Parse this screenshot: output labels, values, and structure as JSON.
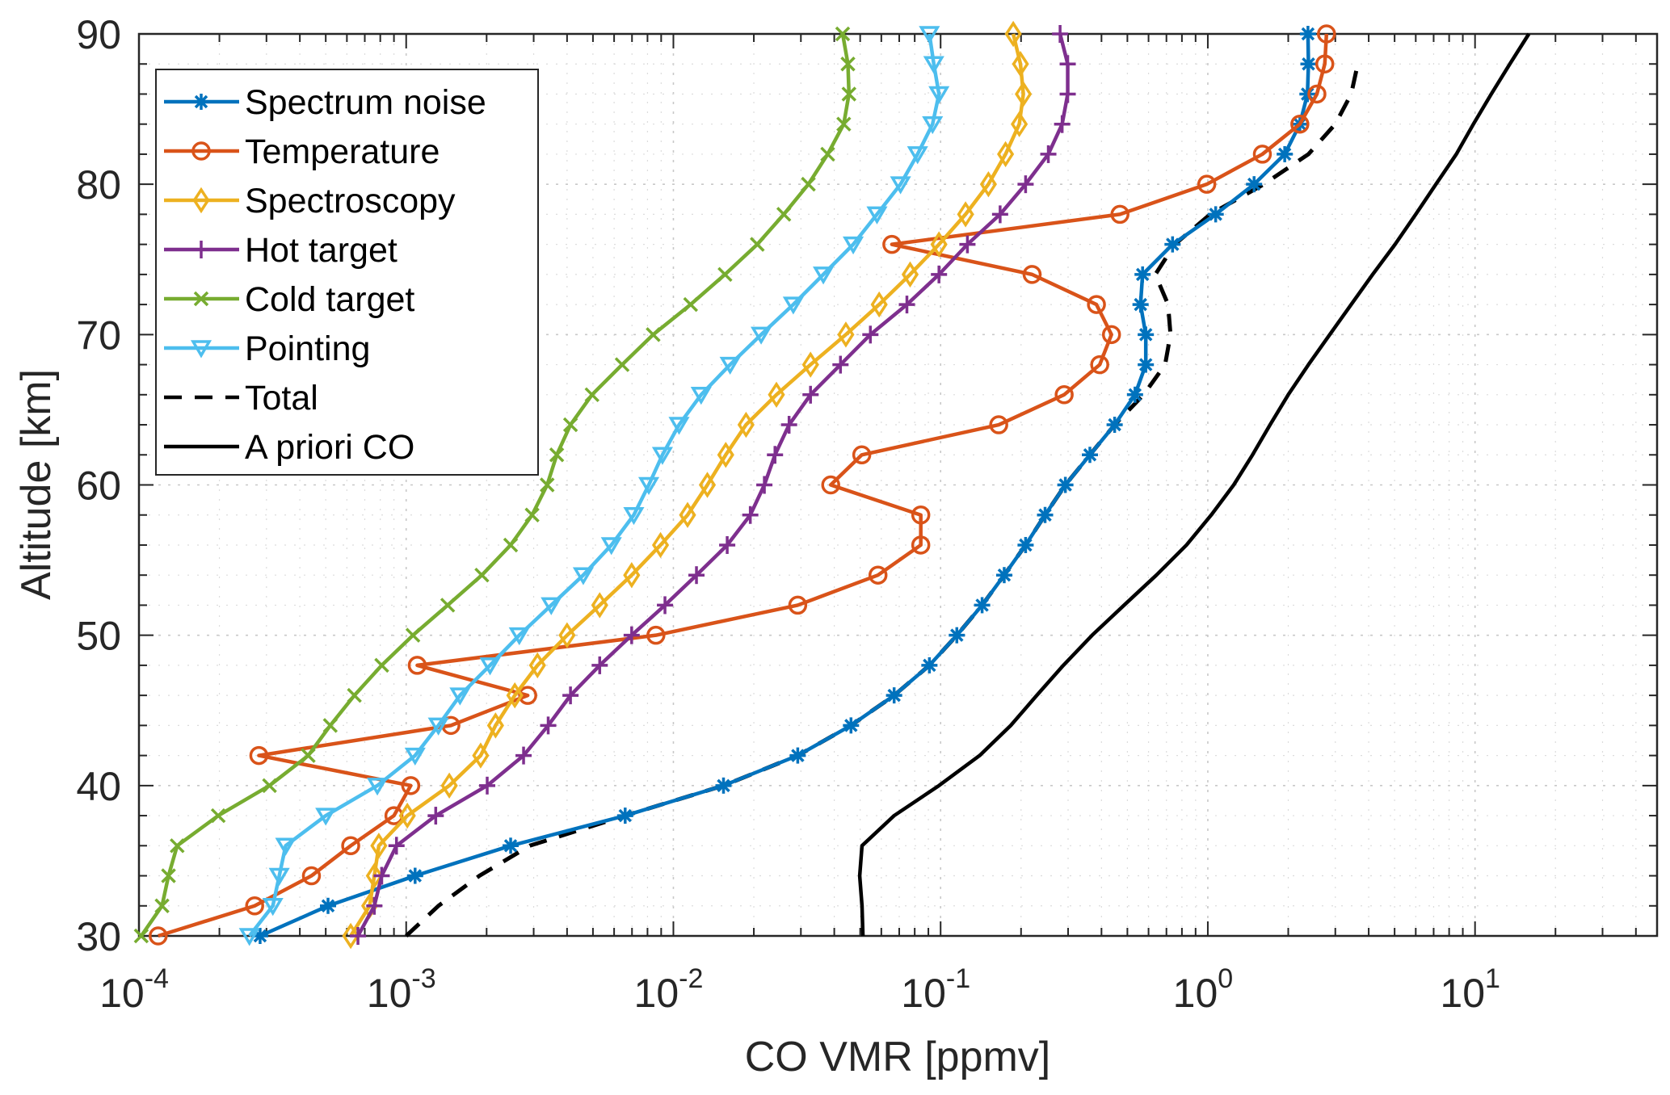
{
  "chart_data": {
    "type": "line",
    "title": "",
    "xlabel": "CO VMR [ppmv]",
    "ylabel": "Altitude [km]",
    "xscale": "log",
    "xlim": [
      0.0001,
      48
    ],
    "ylim": [
      30,
      90
    ],
    "grid": true,
    "minor_grid": true,
    "legend_position": "top-left",
    "x_tick_labels": [
      {
        "base": "10",
        "exp": "-4",
        "value": 0.0001
      },
      {
        "base": "10",
        "exp": "-3",
        "value": 0.001
      },
      {
        "base": "10",
        "exp": "-2",
        "value": 0.01
      },
      {
        "base": "10",
        "exp": "-1",
        "value": 0.1
      },
      {
        "base": "10",
        "exp": "0",
        "value": 1
      },
      {
        "base": "10",
        "exp": "1",
        "value": 10
      }
    ],
    "y_ticks": [
      30,
      40,
      50,
      60,
      70,
      80,
      90
    ],
    "y_tick_labels": [
      "30",
      "40",
      "50",
      "60",
      "70",
      "80",
      "90"
    ],
    "altitude": [
      30,
      32,
      34,
      36,
      38,
      40,
      42,
      44,
      46,
      48,
      50,
      52,
      54,
      56,
      58,
      60,
      62,
      64,
      66,
      68,
      70,
      72,
      74,
      76,
      78,
      80,
      82,
      84,
      86,
      88,
      90
    ],
    "series": [
      {
        "name": "Spectrum noise",
        "color": "#0072BD",
        "marker": "asterisk",
        "style": "solid",
        "values": [
          0.000284,
          0.00051,
          0.00108,
          0.00246,
          0.0066,
          0.0154,
          0.0292,
          0.0462,
          0.067,
          0.0908,
          0.115,
          0.143,
          0.173,
          0.208,
          0.246,
          0.293,
          0.362,
          0.448,
          0.534,
          0.586,
          0.586,
          0.56,
          0.57,
          0.738,
          1.07,
          1.49,
          1.94,
          2.21,
          2.36,
          2.38,
          2.37
        ]
      },
      {
        "name": "Temperature",
        "color": "#D95319",
        "marker": "circle",
        "style": "solid",
        "values": [
          0.000118,
          0.000271,
          0.000442,
          0.00062,
          0.0009,
          0.00104,
          0.000281,
          0.00147,
          0.00285,
          0.0011,
          0.0086,
          0.0292,
          0.0583,
          0.0843,
          0.0843,
          0.0388,
          0.0507,
          0.165,
          0.29,
          0.394,
          0.436,
          0.383,
          0.22,
          0.0657,
          0.469,
          0.991,
          1.6,
          2.21,
          2.56,
          2.74,
          2.78
        ]
      },
      {
        "name": "Spectroscopy",
        "color": "#EDB120",
        "marker": "diamond",
        "style": "solid",
        "values": [
          0.00062,
          0.00073,
          0.00076,
          0.00079,
          0.00101,
          0.00145,
          0.0019,
          0.00216,
          0.00255,
          0.0031,
          0.004,
          0.0053,
          0.00698,
          0.00895,
          0.0113,
          0.0134,
          0.0157,
          0.0187,
          0.0243,
          0.0326,
          0.0442,
          0.0589,
          0.0769,
          0.0986,
          0.124,
          0.151,
          0.175,
          0.197,
          0.204,
          0.199,
          0.187
        ]
      },
      {
        "name": "Hot target",
        "color": "#7E2F8E",
        "marker": "plus",
        "style": "solid",
        "values": [
          0.00066,
          0.00076,
          0.00081,
          0.00092,
          0.00129,
          0.00201,
          0.00275,
          0.0034,
          0.00412,
          0.0053,
          0.00698,
          0.0093,
          0.0122,
          0.0159,
          0.0194,
          0.0219,
          0.024,
          0.0271,
          0.0326,
          0.0422,
          0.0546,
          0.0748,
          0.0986,
          0.126,
          0.167,
          0.208,
          0.253,
          0.285,
          0.299,
          0.299,
          0.28
        ]
      },
      {
        "name": "Cold target",
        "color": "#77AC30",
        "marker": "x",
        "style": "solid",
        "values": [
          0.000102,
          0.000122,
          0.000129,
          0.000139,
          0.000198,
          0.000308,
          0.00043,
          0.00052,
          0.00064,
          0.00081,
          0.00106,
          0.00143,
          0.00192,
          0.00246,
          0.00296,
          0.00337,
          0.00366,
          0.00412,
          0.00496,
          0.00643,
          0.0084,
          0.0116,
          0.0156,
          0.0206,
          0.0259,
          0.032,
          0.0378,
          0.0434,
          0.0454,
          0.045,
          0.043
        ]
      },
      {
        "name": "Pointing",
        "color": "#4DBEEE",
        "marker": "triangle-down",
        "style": "solid",
        "values": [
          0.000259,
          0.000317,
          0.000335,
          0.000354,
          0.0005,
          0.00078,
          0.00108,
          0.00132,
          0.00159,
          0.00206,
          0.00265,
          0.00349,
          0.0046,
          0.00586,
          0.00711,
          0.00809,
          0.0091,
          0.0105,
          0.0127,
          0.0163,
          0.0213,
          0.0281,
          0.0364,
          0.0471,
          0.0578,
          0.0708,
          0.082,
          0.0933,
          0.0986,
          0.0943,
          0.0908
        ]
      },
      {
        "name": "Total",
        "color": "#000000",
        "marker": "none",
        "style": "dashed",
        "values": [
          0.001,
          0.00132,
          0.00188,
          0.0029,
          0.0066,
          0.0154,
          0.0292,
          0.0462,
          0.067,
          0.0908,
          0.115,
          0.143,
          0.173,
          0.208,
          0.246,
          0.293,
          0.362,
          0.448,
          0.575,
          0.692,
          0.725,
          0.71,
          0.636,
          0.752,
          1.02,
          1.62,
          2.38,
          3.0,
          3.44,
          3.64,
          null
        ]
      },
      {
        "name": "A priori CO",
        "color": "#000000",
        "marker": "none",
        "style": "solid",
        "values": [
          0.0512,
          0.0508,
          0.0498,
          0.0508,
          0.067,
          0.0986,
          0.14,
          0.183,
          0.229,
          0.288,
          0.369,
          0.486,
          0.642,
          0.832,
          1.03,
          1.25,
          1.47,
          1.71,
          2.0,
          2.38,
          2.86,
          3.44,
          4.14,
          5.02,
          6.0,
          7.14,
          8.51,
          9.86,
          11.5,
          13.5,
          15.9
        ]
      }
    ]
  }
}
